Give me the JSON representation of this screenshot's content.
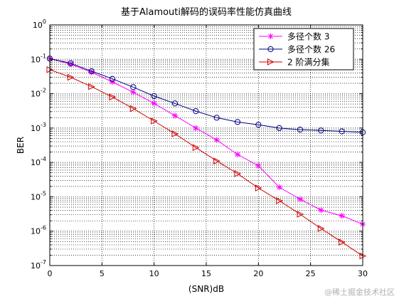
{
  "chart_data": {
    "type": "line",
    "title": "基于Alamouti解码的误码率性能仿真曲线",
    "xlabel": "(SNR)dB",
    "ylabel": "BER",
    "xlim": [
      0,
      30
    ],
    "ylim": [
      1e-07,
      1
    ],
    "yscale": "log",
    "xticks": [
      0,
      5,
      10,
      15,
      20,
      25,
      30
    ],
    "yticks": [
      {
        "value": 1,
        "base": "10",
        "exp": "0"
      },
      {
        "value": 0.1,
        "base": "10",
        "exp": "-1"
      },
      {
        "value": 0.01,
        "base": "10",
        "exp": "-2"
      },
      {
        "value": 0.001,
        "base": "10",
        "exp": "-3"
      },
      {
        "value": 0.0001,
        "base": "10",
        "exp": "-4"
      },
      {
        "value": 1e-05,
        "base": "10",
        "exp": "-5"
      },
      {
        "value": 1e-06,
        "base": "10",
        "exp": "-6"
      },
      {
        "value": 1e-07,
        "base": "10",
        "exp": "-7"
      }
    ],
    "grid": true,
    "legend_position": "top-right",
    "series": [
      {
        "name": "多径个数 3",
        "color": "#ff00ff",
        "marker": "star",
        "x": [
          0,
          2,
          4,
          6,
          8,
          10,
          12,
          14,
          16,
          18,
          20,
          22,
          24,
          26,
          28,
          30
        ],
        "y": [
          0.105,
          0.072,
          0.042,
          0.022,
          0.011,
          0.0052,
          0.0023,
          0.001,
          0.00045,
          0.00017,
          8e-05,
          1.9e-05,
          8.5e-06,
          4.1e-06,
          2.8e-06,
          1.6e-06
        ]
      },
      {
        "name": "多径个数 26",
        "color": "#000080",
        "marker": "circle",
        "x": [
          0,
          2,
          4,
          6,
          8,
          10,
          12,
          14,
          16,
          18,
          20,
          22,
          24,
          26,
          28,
          30
        ],
        "y": [
          0.105,
          0.077,
          0.045,
          0.027,
          0.0155,
          0.0085,
          0.0052,
          0.0031,
          0.002,
          0.0015,
          0.00125,
          0.001,
          0.0009,
          0.00085,
          0.0008,
          0.00075
        ]
      },
      {
        "name": "2 阶满分集",
        "color": "#cc0000",
        "marker": "triangle-right",
        "x": [
          0,
          2,
          4,
          6,
          8,
          10,
          12,
          14,
          16,
          18,
          20,
          22,
          24,
          26,
          28,
          30
        ],
        "y": [
          0.05,
          0.03,
          0.016,
          0.008,
          0.0037,
          0.0016,
          0.00068,
          0.00027,
          0.00011,
          4.7e-05,
          1.8e-05,
          7.7e-06,
          3.1e-06,
          1.2e-06,
          4.8e-07,
          1.9e-07
        ]
      }
    ]
  },
  "watermark": "@稀土掘金技术社区"
}
